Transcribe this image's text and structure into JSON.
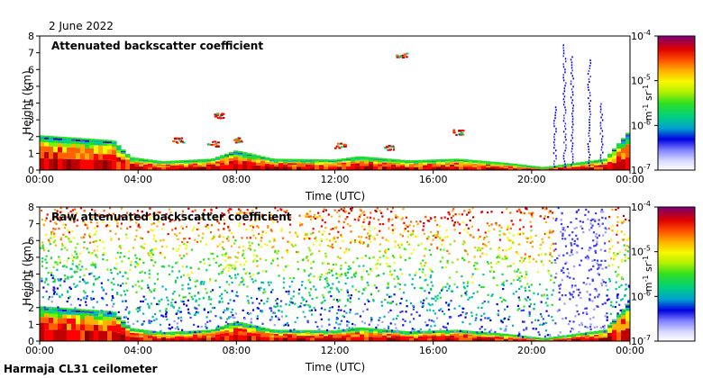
{
  "date_label": "2 June 2022",
  "instrument_label": "Harmaja CL31 ceilometer",
  "colors": {
    "scale": [
      "#ffffff",
      "#d8d8ff",
      "#9a9aff",
      "#3a3aff",
      "#0000e0",
      "#00b0c8",
      "#00d080",
      "#20e020",
      "#80f000",
      "#f8f800",
      "#ffb000",
      "#ff6000",
      "#ff0000",
      "#c00000",
      "#880000"
    ]
  },
  "chart_data": [
    {
      "type": "heatmap",
      "title": "Attenuated backscatter coefficient",
      "xlabel": "Time (UTC)",
      "ylabel": "Height (km)",
      "x_ticks": [
        "00:00",
        "04:00",
        "08:00",
        "12:00",
        "16:00",
        "20:00",
        "00:00"
      ],
      "y_ticks": [
        "0",
        "1",
        "2",
        "3",
        "4",
        "5",
        "6",
        "7",
        "8"
      ],
      "ylim": [
        0,
        8
      ],
      "xlim_hours": [
        0,
        24
      ],
      "colorbar": {
        "ticks": [
          "10-7",
          "10-6",
          "10-5",
          "10-4"
        ],
        "unit": "m-1 sr-1",
        "scale": "log",
        "range": [
          1e-07,
          0.0001
        ]
      },
      "boundary_layer_top_km": [
        [
          0,
          2.0
        ],
        [
          3,
          1.7
        ],
        [
          3.7,
          0.7
        ],
        [
          5,
          0.45
        ],
        [
          7,
          0.6
        ],
        [
          8,
          1.1
        ],
        [
          9.5,
          0.6
        ],
        [
          12,
          0.55
        ],
        [
          13,
          0.75
        ],
        [
          15,
          0.5
        ],
        [
          17,
          0.6
        ],
        [
          19,
          0.35
        ],
        [
          20.5,
          0.1
        ],
        [
          23,
          0.6
        ],
        [
          24,
          2.3
        ]
      ],
      "clouds_km": [
        {
          "t": 7.3,
          "h": 3.3
        },
        {
          "t": 5.6,
          "h": 1.8
        },
        {
          "t": 7.0,
          "h": 1.6
        },
        {
          "t": 8.0,
          "h": 1.8
        },
        {
          "t": 12.2,
          "h": 1.5
        },
        {
          "t": 14.2,
          "h": 1.4
        },
        {
          "t": 17.0,
          "h": 2.3
        },
        {
          "t": 14.7,
          "h": 6.9
        }
      ],
      "precip_streaks": [
        [
          21.3,
          7.5
        ],
        [
          21.6,
          6.8
        ],
        [
          22.3,
          6.6
        ],
        [
          20.9,
          3.8
        ],
        [
          22.8,
          4.0
        ]
      ]
    },
    {
      "type": "heatmap",
      "title": "Raw attenuated backscatter coefficient",
      "xlabel": "Time (UTC)",
      "ylabel": "Height (km)",
      "x_ticks": [
        "00:00",
        "04:00",
        "08:00",
        "12:00",
        "16:00",
        "20:00",
        "00:00"
      ],
      "y_ticks": [
        "0",
        "1",
        "2",
        "3",
        "4",
        "5",
        "6",
        "7",
        "8"
      ],
      "ylim": [
        0,
        8
      ],
      "xlim_hours": [
        0,
        24
      ],
      "colorbar": {
        "ticks": [
          "10-7",
          "10-6",
          "10-5",
          "10-4"
        ],
        "unit": "m-1 sr-1",
        "scale": "log",
        "range": [
          1e-07,
          0.0001
        ]
      },
      "boundary_layer_top_km": [
        [
          0,
          2.0
        ],
        [
          3,
          1.7
        ],
        [
          3.7,
          0.7
        ],
        [
          5,
          0.45
        ],
        [
          7,
          0.6
        ],
        [
          8,
          1.1
        ],
        [
          9.5,
          0.6
        ],
        [
          12,
          0.55
        ],
        [
          13,
          0.75
        ],
        [
          15,
          0.5
        ],
        [
          17,
          0.6
        ],
        [
          19,
          0.35
        ],
        [
          20.5,
          0.1
        ],
        [
          23,
          0.6
        ],
        [
          24,
          2.3
        ]
      ],
      "noise_free_window_hours": [
        20.9,
        23.0
      ]
    }
  ]
}
